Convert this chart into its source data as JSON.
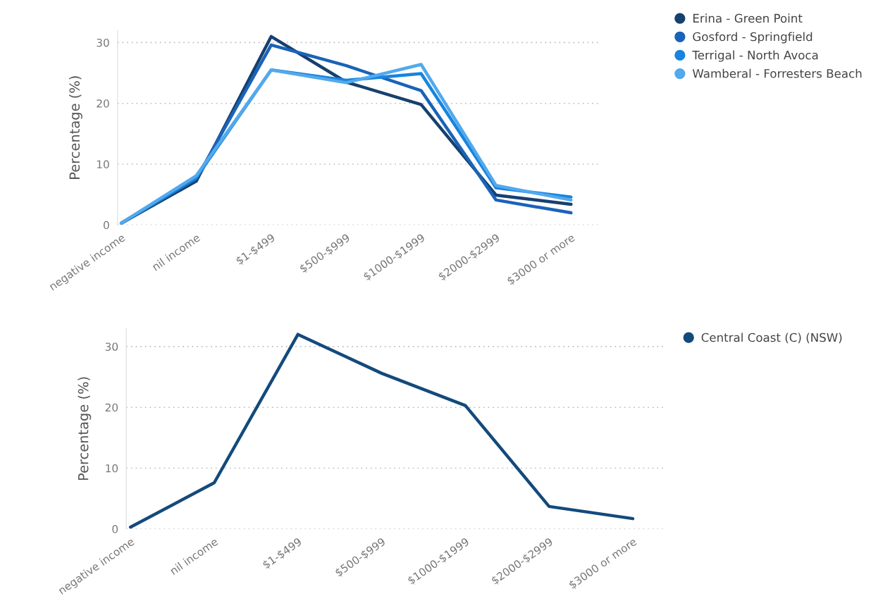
{
  "chart_data": [
    {
      "type": "line",
      "ylabel": "Percentage (%)",
      "categories": [
        "negative income",
        "nil income",
        "$1-$499",
        "$500-$999",
        "$1000-$1999",
        "$2000-$2999",
        "$3000 or more"
      ],
      "ylim": [
        0,
        32
      ],
      "yticks": [
        0,
        10,
        20,
        30
      ],
      "grid": "y",
      "legend": "top right",
      "series": [
        {
          "name": "Erina - Green Point",
          "color": "#16406e",
          "values": [
            0.3,
            7.2,
            31.0,
            23.5,
            19.8,
            4.9,
            3.4
          ]
        },
        {
          "name": "Gosford - Springfield",
          "color": "#1a63b8",
          "values": [
            0.3,
            7.6,
            29.6,
            26.2,
            22.1,
            4.1,
            2.0
          ]
        },
        {
          "name": "Terrigal - North Avoca",
          "color": "#1884e0",
          "values": [
            0.3,
            7.8,
            25.5,
            23.8,
            24.9,
            6.1,
            4.6
          ]
        },
        {
          "name": "Wamberal - Forresters Beach",
          "color": "#52a9ec",
          "values": [
            0.3,
            8.1,
            25.5,
            23.4,
            26.4,
            6.5,
            4.1
          ]
        }
      ]
    },
    {
      "type": "line",
      "ylabel": "Percentage (%)",
      "categories": [
        "negative income",
        "nil income",
        "$1-$499",
        "$500-$999",
        "$1000-$1999",
        "$2000-$2999",
        "$3000 or more"
      ],
      "ylim": [
        0,
        33
      ],
      "yticks": [
        0,
        10,
        20,
        30
      ],
      "grid": "y",
      "legend": "top right",
      "series": [
        {
          "name": "Central Coast (C) (NSW)",
          "color": "#134a7c",
          "values": [
            0.3,
            7.6,
            32.0,
            25.6,
            20.3,
            3.7,
            1.7
          ]
        }
      ]
    }
  ]
}
